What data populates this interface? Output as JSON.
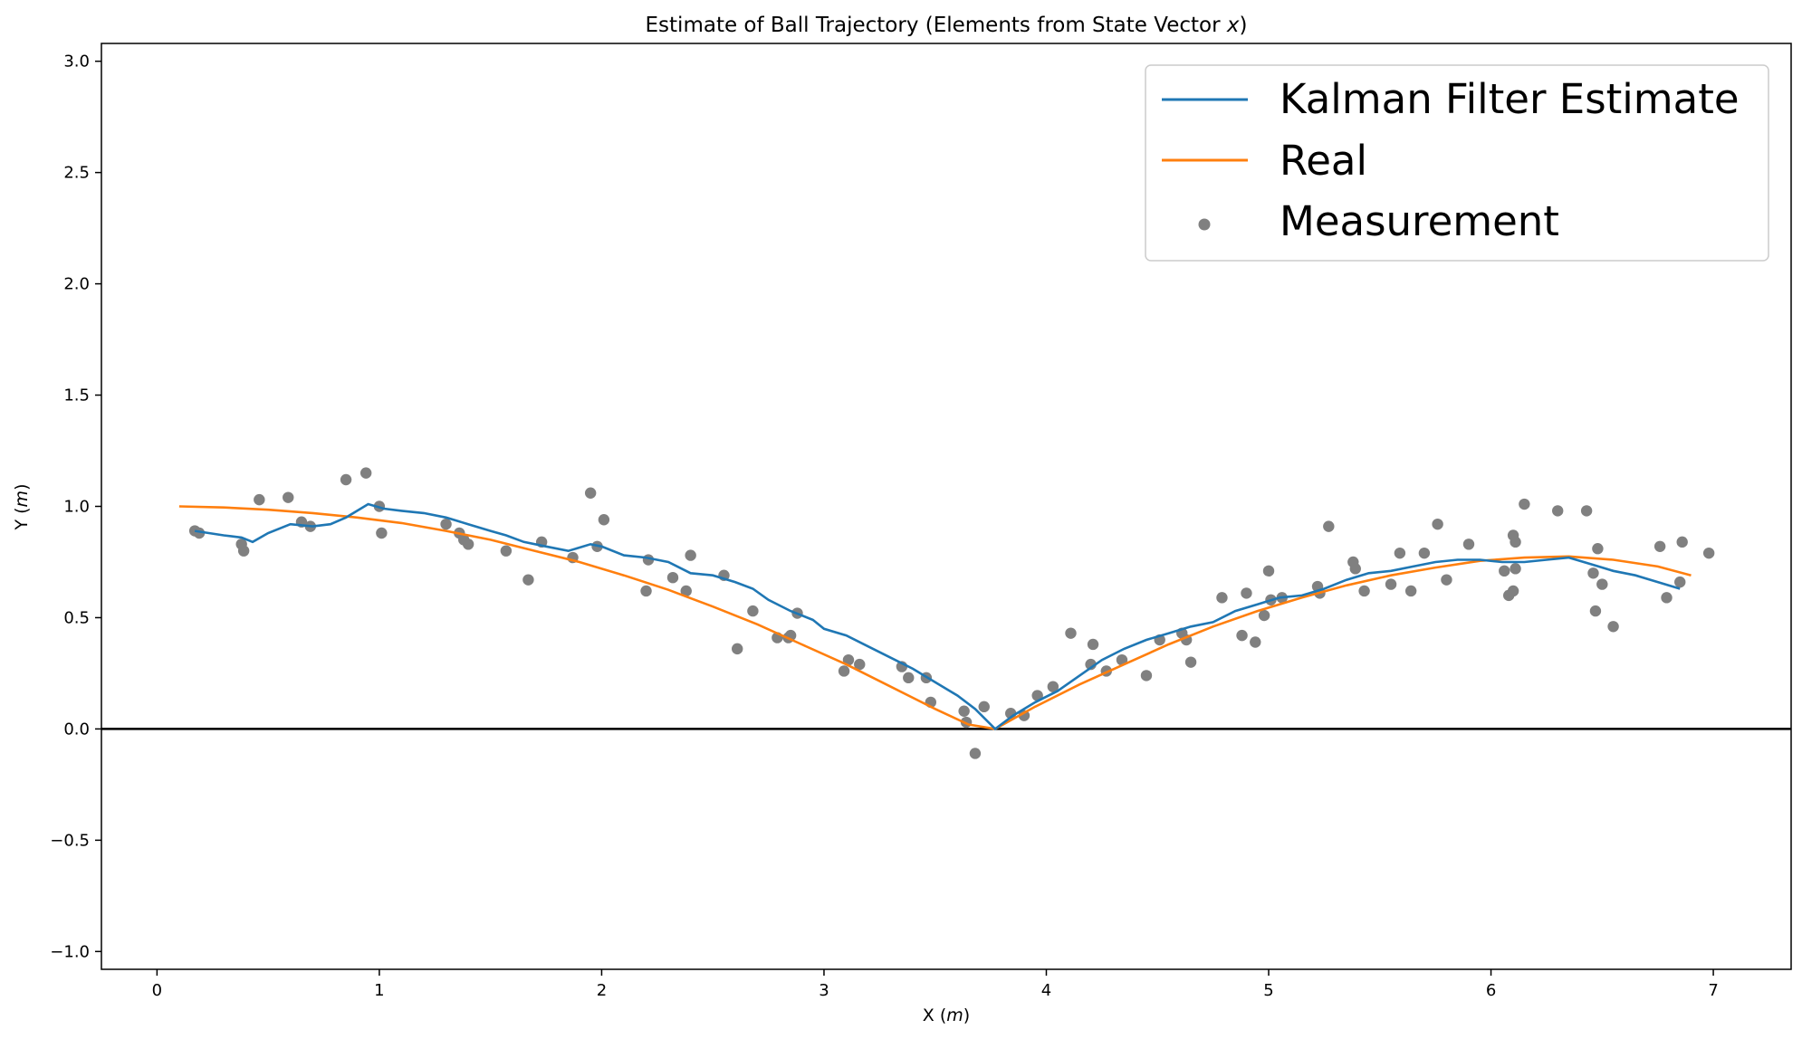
{
  "chart_data": {
    "type": "line",
    "title": "Estimate of Ball Trajectory (Elements from State Vector ",
    "title_var": "x",
    "title_end": ")",
    "xlabel": "X (",
    "xlabel_unit": "m",
    "xlabel_end": ")",
    "ylabel": "Y (",
    "ylabel_unit": "m",
    "ylabel_end": ")",
    "xlim": [
      -0.25,
      7.35
    ],
    "ylim": [
      -1.08,
      3.08
    ],
    "xticks": [
      0,
      1,
      2,
      3,
      4,
      5,
      6,
      7
    ],
    "yticks": [
      -1.0,
      -0.5,
      0.0,
      0.5,
      1.0,
      1.5,
      2.0,
      2.5,
      3.0
    ],
    "xtick_labels": [
      "0",
      "1",
      "2",
      "3",
      "4",
      "5",
      "6",
      "7"
    ],
    "ytick_labels": [
      "−1.0",
      "−0.5",
      "0.0",
      "0.5",
      "1.0",
      "1.5",
      "2.0",
      "2.5",
      "3.0"
    ],
    "legend_position": "top-right",
    "hline_y": 0,
    "colors": {
      "kalman": "#1f77b4",
      "real": "#ff7f0e",
      "measurement": "#808080",
      "axis": "#000000"
    },
    "legend": [
      "Kalman Filter Estimate",
      "Real",
      "Measurement"
    ],
    "series": [
      {
        "name": "Kalman Filter Estimate",
        "x": [
          0.17,
          0.3,
          0.38,
          0.43,
          0.5,
          0.6,
          0.7,
          0.78,
          0.85,
          0.95,
          1.02,
          1.1,
          1.2,
          1.3,
          1.4,
          1.5,
          1.57,
          1.65,
          1.75,
          1.85,
          1.95,
          2.0,
          2.1,
          2.2,
          2.3,
          2.4,
          2.5,
          2.6,
          2.68,
          2.75,
          2.85,
          2.95,
          3.0,
          3.1,
          3.2,
          3.3,
          3.4,
          3.5,
          3.6,
          3.68,
          3.77,
          3.85,
          3.95,
          4.05,
          4.15,
          4.25,
          4.35,
          4.45,
          4.55,
          4.65,
          4.75,
          4.85,
          4.95,
          5.05,
          5.15,
          5.25,
          5.35,
          5.45,
          5.55,
          5.65,
          5.75,
          5.85,
          5.95,
          6.05,
          6.15,
          6.25,
          6.35,
          6.45,
          6.55,
          6.65,
          6.75,
          6.85
        ],
        "y": [
          0.89,
          0.87,
          0.86,
          0.84,
          0.88,
          0.92,
          0.91,
          0.92,
          0.95,
          1.01,
          0.99,
          0.98,
          0.97,
          0.95,
          0.92,
          0.89,
          0.87,
          0.84,
          0.82,
          0.8,
          0.83,
          0.82,
          0.78,
          0.77,
          0.75,
          0.7,
          0.69,
          0.66,
          0.63,
          0.58,
          0.53,
          0.49,
          0.45,
          0.42,
          0.37,
          0.32,
          0.27,
          0.21,
          0.15,
          0.09,
          0.0,
          0.06,
          0.12,
          0.17,
          0.24,
          0.31,
          0.36,
          0.4,
          0.43,
          0.46,
          0.48,
          0.53,
          0.56,
          0.59,
          0.6,
          0.63,
          0.67,
          0.7,
          0.71,
          0.73,
          0.75,
          0.76,
          0.76,
          0.75,
          0.75,
          0.76,
          0.77,
          0.74,
          0.71,
          0.69,
          0.66,
          0.63
        ]
      },
      {
        "name": "Real",
        "x": [
          0.1,
          0.3,
          0.5,
          0.7,
          0.9,
          1.1,
          1.3,
          1.5,
          1.7,
          1.9,
          2.1,
          2.3,
          2.5,
          2.7,
          2.9,
          3.1,
          3.3,
          3.5,
          3.65,
          3.77,
          3.95,
          4.15,
          4.35,
          4.55,
          4.75,
          4.95,
          5.15,
          5.35,
          5.55,
          5.75,
          5.95,
          6.15,
          6.35,
          6.55,
          6.75,
          6.9
        ],
        "y": [
          1.0,
          0.995,
          0.985,
          0.97,
          0.95,
          0.925,
          0.89,
          0.85,
          0.8,
          0.75,
          0.69,
          0.625,
          0.55,
          0.47,
          0.38,
          0.29,
          0.19,
          0.09,
          0.02,
          0.0,
          0.1,
          0.2,
          0.29,
          0.38,
          0.46,
          0.53,
          0.59,
          0.645,
          0.69,
          0.725,
          0.755,
          0.77,
          0.775,
          0.76,
          0.73,
          0.69
        ]
      },
      {
        "name": "Measurement",
        "x": [
          0.17,
          0.19,
          0.38,
          0.39,
          0.46,
          0.59,
          0.65,
          0.69,
          0.85,
          0.94,
          1.0,
          1.01,
          1.3,
          1.36,
          1.38,
          1.4,
          1.57,
          1.67,
          1.73,
          1.87,
          1.95,
          1.98,
          2.01,
          2.2,
          2.21,
          2.32,
          2.38,
          2.4,
          2.55,
          2.61,
          2.68,
          2.79,
          2.84,
          2.85,
          2.88,
          3.09,
          3.11,
          3.16,
          3.35,
          3.38,
          3.46,
          3.48,
          3.63,
          3.64,
          3.68,
          3.72,
          3.84,
          3.9,
          3.96,
          4.03,
          4.11,
          4.2,
          4.21,
          4.27,
          4.34,
          4.45,
          4.51,
          4.61,
          4.63,
          4.65,
          4.79,
          4.88,
          4.9,
          4.94,
          4.98,
          5.0,
          5.01,
          5.06,
          5.22,
          5.23,
          5.27,
          5.38,
          5.39,
          5.43,
          5.55,
          5.59,
          5.64,
          5.7,
          5.76,
          5.8,
          5.9,
          6.06,
          6.08,
          6.1,
          6.1,
          6.11,
          6.11,
          6.15,
          6.3,
          6.43,
          6.46,
          6.47,
          6.48,
          6.5,
          6.55,
          6.76,
          6.79,
          6.85,
          6.86,
          6.98
        ],
        "y": [
          0.89,
          0.88,
          0.83,
          0.8,
          1.03,
          1.04,
          0.93,
          0.91,
          1.12,
          1.15,
          1.0,
          0.88,
          0.92,
          0.88,
          0.85,
          0.83,
          0.8,
          0.67,
          0.84,
          0.77,
          1.06,
          0.82,
          0.94,
          0.62,
          0.76,
          0.68,
          0.62,
          0.78,
          0.69,
          0.36,
          0.53,
          0.41,
          0.41,
          0.42,
          0.52,
          0.26,
          0.31,
          0.29,
          0.28,
          0.23,
          0.23,
          0.12,
          0.08,
          0.03,
          -0.11,
          0.1,
          0.07,
          0.06,
          0.15,
          0.19,
          0.43,
          0.29,
          0.38,
          0.26,
          0.31,
          0.24,
          0.4,
          0.43,
          0.4,
          0.3,
          0.59,
          0.42,
          0.61,
          0.39,
          0.51,
          0.71,
          0.58,
          0.59,
          0.64,
          0.61,
          0.91,
          0.75,
          0.72,
          0.62,
          0.65,
          0.79,
          0.62,
          0.79,
          0.92,
          0.67,
          0.83,
          0.71,
          0.6,
          0.87,
          0.62,
          0.72,
          0.84,
          1.01,
          0.98,
          0.98,
          0.7,
          0.53,
          0.81,
          0.65,
          0.46,
          0.82,
          0.59,
          0.66,
          0.84,
          0.79
        ]
      }
    ]
  }
}
